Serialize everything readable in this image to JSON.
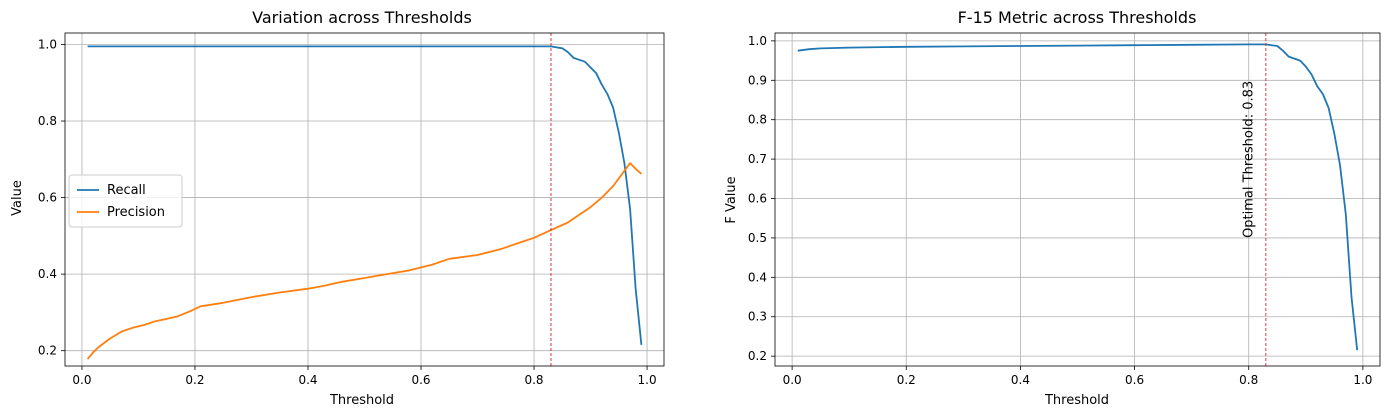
{
  "chart_data": [
    {
      "type": "line",
      "title": "Variation across Thresholds",
      "xlabel": "Threshold",
      "ylabel": "Value",
      "xlim": [
        -0.03,
        1.03
      ],
      "ylim": [
        0.16,
        1.03
      ],
      "xticks": [
        0.0,
        0.2,
        0.4,
        0.6,
        0.8,
        1.0
      ],
      "xtick_labels": [
        "0.0",
        "0.2",
        "0.4",
        "0.6",
        "0.8",
        "1.0"
      ],
      "yticks": [
        0.2,
        0.4,
        0.6,
        0.8,
        1.0
      ],
      "ytick_labels": [
        "0.2",
        "0.4",
        "0.6",
        "0.8",
        "1.0"
      ],
      "grid": true,
      "legend": "center-left",
      "vline": {
        "x": 0.83,
        "color": "#d62728",
        "style": "dashed"
      },
      "series": [
        {
          "name": "Recall",
          "color": "#1f77b4",
          "x": [
            0.01,
            0.1,
            0.2,
            0.3,
            0.4,
            0.5,
            0.6,
            0.7,
            0.8,
            0.83,
            0.85,
            0.86,
            0.87,
            0.88,
            0.89,
            0.9,
            0.91,
            0.92,
            0.93,
            0.94,
            0.95,
            0.96,
            0.97,
            0.98,
            0.99
          ],
          "y": [
            0.995,
            0.995,
            0.995,
            0.995,
            0.995,
            0.995,
            0.995,
            0.995,
            0.995,
            0.995,
            0.99,
            0.98,
            0.965,
            0.96,
            0.955,
            0.94,
            0.925,
            0.895,
            0.87,
            0.835,
            0.77,
            0.69,
            0.57,
            0.36,
            0.215
          ]
        },
        {
          "name": "Precision",
          "color": "#ff7f0e",
          "x": [
            0.01,
            0.02,
            0.03,
            0.05,
            0.07,
            0.09,
            0.11,
            0.13,
            0.15,
            0.17,
            0.19,
            0.21,
            0.25,
            0.3,
            0.35,
            0.4,
            0.43,
            0.46,
            0.5,
            0.54,
            0.58,
            0.62,
            0.65,
            0.7,
            0.74,
            0.78,
            0.8,
            0.83,
            0.86,
            0.88,
            0.9,
            0.92,
            0.94,
            0.96,
            0.97,
            0.98,
            0.99
          ],
          "y": [
            0.178,
            0.196,
            0.21,
            0.232,
            0.25,
            0.26,
            0.267,
            0.277,
            0.283,
            0.29,
            0.302,
            0.316,
            0.325,
            0.34,
            0.352,
            0.362,
            0.37,
            0.38,
            0.39,
            0.4,
            0.41,
            0.425,
            0.44,
            0.45,
            0.465,
            0.485,
            0.495,
            0.515,
            0.535,
            0.555,
            0.575,
            0.6,
            0.63,
            0.67,
            0.69,
            0.675,
            0.662
          ]
        }
      ]
    },
    {
      "type": "line",
      "title": "F-15 Metric across Thresholds",
      "xlabel": "Threshold",
      "ylabel": "F Value",
      "xlim": [
        -0.03,
        1.03
      ],
      "ylim": [
        0.175,
        1.02
      ],
      "xticks": [
        0.0,
        0.2,
        0.4,
        0.6,
        0.8,
        1.0
      ],
      "xtick_labels": [
        "0.0",
        "0.2",
        "0.4",
        "0.6",
        "0.8",
        "1.0"
      ],
      "yticks": [
        0.2,
        0.3,
        0.4,
        0.5,
        0.6,
        0.7,
        0.8,
        0.9,
        1.0
      ],
      "ytick_labels": [
        "0.2",
        "0.3",
        "0.4",
        "0.5",
        "0.6",
        "0.7",
        "0.8",
        "0.9",
        "1.0"
      ],
      "grid": true,
      "vline": {
        "x": 0.83,
        "color": "#d62728",
        "style": "dashed"
      },
      "annotations": [
        {
          "text": "Optimal Threshold: 0.83",
          "x": 0.8,
          "y": 0.5,
          "rotation": 90
        }
      ],
      "series": [
        {
          "color": "#1f77b4",
          "x": [
            0.01,
            0.03,
            0.05,
            0.1,
            0.2,
            0.3,
            0.4,
            0.5,
            0.6,
            0.7,
            0.8,
            0.83,
            0.85,
            0.86,
            0.87,
            0.88,
            0.89,
            0.9,
            0.91,
            0.92,
            0.93,
            0.94,
            0.95,
            0.96,
            0.97,
            0.98,
            0.99
          ],
          "y": [
            0.975,
            0.979,
            0.981,
            0.983,
            0.985,
            0.986,
            0.987,
            0.988,
            0.989,
            0.99,
            0.991,
            0.991,
            0.987,
            0.975,
            0.96,
            0.955,
            0.95,
            0.935,
            0.915,
            0.885,
            0.865,
            0.83,
            0.765,
            0.685,
            0.56,
            0.35,
            0.215
          ]
        }
      ]
    }
  ]
}
